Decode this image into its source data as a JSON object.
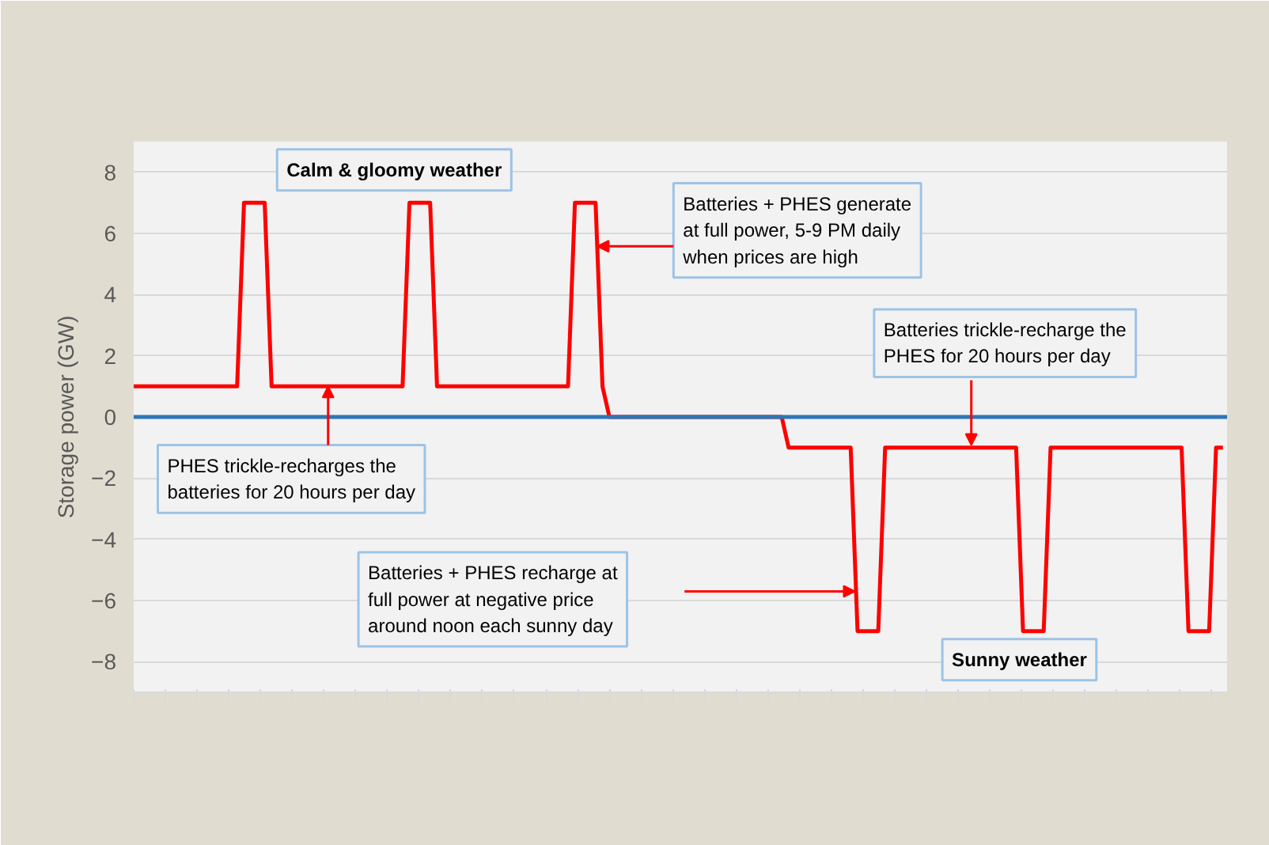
{
  "chart_data": {
    "type": "line",
    "ylabel": "Storage power (GW)",
    "categories": [
      null,
      null,
      null,
      null,
      null,
      null,
      null,
      null,
      null,
      null,
      null,
      null,
      null,
      null,
      null,
      null,
      null,
      null,
      null,
      null,
      null,
      null,
      null,
      null,
      null,
      null,
      null,
      null,
      null,
      null,
      null,
      null,
      null,
      null,
      null,
      null,
      null,
      null,
      null,
      null,
      null,
      null,
      null,
      null,
      null,
      null,
      null,
      null,
      null,
      null,
      null,
      null,
      null,
      null,
      null,
      null,
      null,
      null,
      null,
      null,
      null,
      null,
      null,
      null,
      null,
      null,
      null,
      null,
      null,
      null,
      null,
      null,
      null,
      null,
      null,
      null,
      null,
      null,
      null,
      null,
      null,
      null,
      null,
      null,
      null,
      null,
      null,
      null,
      null,
      null,
      null,
      null,
      null,
      null,
      null,
      null,
      null,
      null,
      null,
      null,
      null,
      null,
      null,
      null,
      null,
      null,
      null,
      null,
      null,
      null,
      null,
      null,
      null,
      null,
      null,
      null,
      null,
      null,
      null,
      null,
      null,
      null,
      null,
      null,
      null,
      null,
      null,
      null,
      null,
      null,
      null,
      null,
      null,
      null,
      null,
      null,
      null,
      null,
      null,
      null,
      null,
      null,
      null,
      null,
      null,
      null,
      null,
      null,
      null,
      null,
      null,
      null,
      null,
      null,
      null,
      null,
      null,
      null,
      null
    ],
    "series": [
      {
        "color": "#ff0000",
        "values": [
          1,
          1,
          1,
          1,
          1,
          1,
          1,
          1,
          1,
          1,
          1,
          1,
          1,
          1,
          1,
          1,
          7,
          7,
          7,
          7,
          1,
          1,
          1,
          1,
          1,
          1,
          1,
          1,
          1,
          1,
          1,
          1,
          1,
          1,
          1,
          1,
          1,
          1,
          1,
          1,
          7,
          7,
          7,
          7,
          1,
          1,
          1,
          1,
          1,
          1,
          1,
          1,
          1,
          1,
          1,
          1,
          1,
          1,
          1,
          1,
          1,
          1,
          1,
          1,
          7,
          7,
          7,
          7,
          1,
          0,
          0,
          0,
          0,
          0,
          0,
          0,
          0,
          0,
          0,
          0,
          0,
          0,
          0,
          0,
          0,
          0,
          0,
          0,
          0,
          0,
          0,
          0,
          0,
          0,
          0,
          -1,
          -1,
          -1,
          -1,
          -1,
          -1,
          -1,
          -1,
          -1,
          -1,
          -7,
          -7,
          -7,
          -7,
          -1,
          -1,
          -1,
          -1,
          -1,
          -1,
          -1,
          -1,
          -1,
          -1,
          -1,
          -1,
          -1,
          -1,
          -1,
          -1,
          -1,
          -1,
          -1,
          -1,
          -7,
          -7,
          -7,
          -7,
          -1,
          -1,
          -1,
          -1,
          -1,
          -1,
          -1,
          -1,
          -1,
          -1,
          -1,
          -1,
          -1,
          -1,
          -1,
          -1,
          -1,
          -1,
          -1,
          -1,
          -7,
          -7,
          -7,
          -7,
          -1,
          -1
        ]
      }
    ],
    "ylim": [
      -9,
      9
    ],
    "yticks": [
      -8,
      -6,
      -4,
      -2,
      0,
      2,
      4,
      6,
      8
    ],
    "grid": "y",
    "tick_labels": "y",
    "line_style": "solid",
    "ref_lines": [
      {
        "axis": "y",
        "value": 0,
        "color": "#2e75b6"
      }
    ],
    "annotations": [
      "Calm & gloomy weather",
      "Batteries + PHES generate at full power, 5-9 PM daily when prices are high",
      "Batteries trickle-recharge the PHES for 20 hours per day",
      "PHES trickle-recharges the batteries for 20 hours per day",
      "Batteries + PHES recharge at full power at negative price around noon each sunny day",
      "Sunny weather"
    ]
  }
}
